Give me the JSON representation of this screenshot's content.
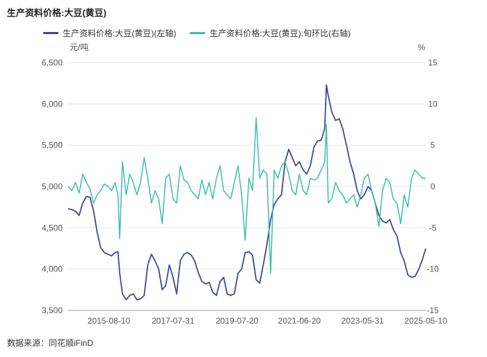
{
  "title": "生产资料价格:大豆(黄豆)",
  "source": "数据来源：同花顺iFinD",
  "legend": [
    {
      "label": "生产资料价格:大豆(黄豆)(左轴)",
      "color": "#3d4a8f"
    },
    {
      "label": "生产资料价格:大豆(黄豆):旬环比(右轴)",
      "color": "#3bbfa5"
    }
  ],
  "axes": {
    "left_unit": "元/吨",
    "right_unit": "%",
    "left_ticks": [
      "6,500",
      "6,000",
      "5,500",
      "5,000",
      "4,500",
      "4,000",
      "3,500"
    ],
    "right_ticks": [
      "15",
      "10",
      "5",
      "0",
      "-5",
      "-10",
      "-15"
    ],
    "x_ticks": [
      "2015-08-10",
      "2017-07-31",
      "2019-07-20",
      "2021-06-20",
      "2023-05-31",
      "2025-05-10"
    ]
  },
  "chart_data": {
    "type": "line",
    "title": "生产资料价格:大豆(黄豆)",
    "x_range": [
      "2014-05-10",
      "2025-05-10"
    ],
    "y_left_range": [
      3500,
      6500
    ],
    "y_right_range": [
      -15,
      15
    ],
    "series": [
      {
        "name": "生产资料价格:大豆(黄豆)(左轴)",
        "axis": "left",
        "color": "#3d4a8f",
        "points": [
          [
            "2014-05-10",
            4730
          ],
          [
            "2014-06-20",
            4720
          ],
          [
            "2014-08-01",
            4700
          ],
          [
            "2014-09-10",
            4650
          ],
          [
            "2014-10-20",
            4800
          ],
          [
            "2014-12-01",
            4880
          ],
          [
            "2015-01-10",
            4870
          ],
          [
            "2015-02-20",
            4700
          ],
          [
            "2015-03-31",
            4450
          ],
          [
            "2015-05-10",
            4260
          ],
          [
            "2015-06-20",
            4200
          ],
          [
            "2015-08-01",
            4180
          ],
          [
            "2015-09-10",
            4160
          ],
          [
            "2015-10-20",
            4200
          ],
          [
            "2015-11-20",
            4210
          ],
          [
            "2015-12-10",
            3950
          ],
          [
            "2016-01-10",
            3700
          ],
          [
            "2016-02-20",
            3630
          ],
          [
            "2016-03-31",
            3680
          ],
          [
            "2016-05-10",
            3700
          ],
          [
            "2016-06-20",
            3630
          ],
          [
            "2016-08-01",
            3640
          ],
          [
            "2016-09-10",
            3680
          ],
          [
            "2016-10-20",
            4050
          ],
          [
            "2016-12-01",
            4180
          ],
          [
            "2017-01-10",
            4100
          ],
          [
            "2017-02-20",
            4000
          ],
          [
            "2017-03-31",
            3750
          ],
          [
            "2017-05-10",
            3800
          ],
          [
            "2017-06-20",
            4050
          ],
          [
            "2017-07-31",
            3900
          ],
          [
            "2017-09-10",
            3700
          ],
          [
            "2017-10-20",
            4100
          ],
          [
            "2017-12-01",
            4180
          ],
          [
            "2018-01-10",
            4200
          ],
          [
            "2018-02-20",
            4170
          ],
          [
            "2018-03-31",
            4100
          ],
          [
            "2018-05-10",
            3960
          ],
          [
            "2018-06-20",
            3850
          ],
          [
            "2018-08-01",
            3820
          ],
          [
            "2018-09-10",
            3840
          ],
          [
            "2018-10-20",
            3720
          ],
          [
            "2018-12-01",
            3680
          ],
          [
            "2019-01-10",
            3850
          ],
          [
            "2019-02-20",
            3900
          ],
          [
            "2019-03-31",
            3700
          ],
          [
            "2019-05-10",
            3680
          ],
          [
            "2019-06-20",
            3700
          ],
          [
            "2019-07-31",
            3950
          ],
          [
            "2019-09-10",
            4000
          ],
          [
            "2019-10-20",
            4200
          ],
          [
            "2019-12-01",
            4210
          ],
          [
            "2020-01-10",
            4170
          ],
          [
            "2020-02-20",
            3870
          ],
          [
            "2020-03-31",
            3830
          ],
          [
            "2020-05-10",
            4050
          ],
          [
            "2020-06-20",
            4300
          ],
          [
            "2020-08-01",
            4600
          ],
          [
            "2020-09-10",
            4780
          ],
          [
            "2020-10-20",
            4850
          ],
          [
            "2020-12-01",
            4900
          ],
          [
            "2021-01-10",
            5300
          ],
          [
            "2021-02-20",
            5450
          ],
          [
            "2021-03-31",
            5350
          ],
          [
            "2021-05-10",
            5250
          ],
          [
            "2021-06-20",
            5300
          ],
          [
            "2021-08-01",
            5200
          ],
          [
            "2021-09-10",
            5150
          ],
          [
            "2021-10-20",
            5250
          ],
          [
            "2021-12-01",
            5480
          ],
          [
            "2022-01-10",
            5550
          ],
          [
            "2022-02-20",
            5560
          ],
          [
            "2022-03-31",
            5700
          ],
          [
            "2022-04-20",
            6230
          ],
          [
            "2022-05-10",
            6100
          ],
          [
            "2022-06-20",
            5900
          ],
          [
            "2022-08-01",
            5800
          ],
          [
            "2022-09-10",
            5820
          ],
          [
            "2022-10-20",
            5700
          ],
          [
            "2022-12-01",
            5500
          ],
          [
            "2023-01-10",
            5300
          ],
          [
            "2023-02-20",
            5150
          ],
          [
            "2023-03-31",
            4950
          ],
          [
            "2023-05-10",
            4850
          ],
          [
            "2023-06-20",
            4900
          ],
          [
            "2023-07-31",
            5000
          ],
          [
            "2023-09-10",
            4950
          ],
          [
            "2023-10-20",
            4800
          ],
          [
            "2023-12-01",
            4650
          ],
          [
            "2024-01-10",
            4580
          ],
          [
            "2024-02-20",
            4560
          ],
          [
            "2024-03-31",
            4600
          ],
          [
            "2024-05-10",
            4480
          ],
          [
            "2024-06-20",
            4400
          ],
          [
            "2024-08-01",
            4200
          ],
          [
            "2024-09-10",
            4100
          ],
          [
            "2024-10-20",
            3930
          ],
          [
            "2024-12-01",
            3900
          ],
          [
            "2025-01-10",
            3910
          ],
          [
            "2025-02-20",
            4000
          ],
          [
            "2025-03-31",
            4110
          ],
          [
            "2025-05-10",
            4250
          ]
        ]
      },
      {
        "name": "生产资料价格:大豆(黄豆):旬环比(右轴)",
        "axis": "right",
        "color": "#3bbfa5",
        "points": [
          [
            "2014-05-10",
            0.0
          ],
          [
            "2014-06-20",
            -0.5
          ],
          [
            "2014-08-01",
            0.5
          ],
          [
            "2014-09-10",
            -0.8
          ],
          [
            "2014-10-20",
            1.5
          ],
          [
            "2014-12-01",
            0.5
          ],
          [
            "2015-01-10",
            -0.3
          ],
          [
            "2015-02-20",
            -2.0
          ],
          [
            "2015-03-31",
            -1.0
          ],
          [
            "2015-05-10",
            -0.5
          ],
          [
            "2015-06-20",
            0.3
          ],
          [
            "2015-08-01",
            0.0
          ],
          [
            "2015-09-10",
            -0.5
          ],
          [
            "2015-10-20",
            0.5
          ],
          [
            "2015-11-20",
            -1.0
          ],
          [
            "2015-12-10",
            -6.3
          ],
          [
            "2016-01-10",
            3.0
          ],
          [
            "2016-02-20",
            -1.0
          ],
          [
            "2016-03-31",
            1.5
          ],
          [
            "2016-05-10",
            0.5
          ],
          [
            "2016-06-20",
            -1.0
          ],
          [
            "2016-08-01",
            0.5
          ],
          [
            "2016-09-10",
            3.5
          ],
          [
            "2016-10-20",
            1.0
          ],
          [
            "2016-12-01",
            -2.0
          ],
          [
            "2017-01-10",
            -0.5
          ],
          [
            "2017-02-20",
            -1.5
          ],
          [
            "2017-03-31",
            -4.5
          ],
          [
            "2017-05-10",
            1.0
          ],
          [
            "2017-06-20",
            1.5
          ],
          [
            "2017-07-31",
            -1.5
          ],
          [
            "2017-09-10",
            -2.0
          ],
          [
            "2017-10-20",
            2.5
          ],
          [
            "2017-12-01",
            0.8
          ],
          [
            "2018-01-10",
            0.5
          ],
          [
            "2018-02-20",
            -0.5
          ],
          [
            "2018-03-31",
            -1.0
          ],
          [
            "2018-05-10",
            -1.5
          ],
          [
            "2018-06-20",
            0.8
          ],
          [
            "2018-08-01",
            -1.0
          ],
          [
            "2018-09-10",
            0.5
          ],
          [
            "2018-10-20",
            -1.5
          ],
          [
            "2018-12-01",
            1.0
          ],
          [
            "2019-01-10",
            2.5
          ],
          [
            "2019-02-20",
            -0.5
          ],
          [
            "2019-03-31",
            -1.0
          ],
          [
            "2019-05-10",
            -1.5
          ],
          [
            "2019-06-20",
            0.5
          ],
          [
            "2019-07-31",
            2.5
          ],
          [
            "2019-09-10",
            -1.0
          ],
          [
            "2019-10-20",
            -6.5
          ],
          [
            "2019-12-01",
            1.0
          ],
          [
            "2020-01-10",
            -0.5
          ],
          [
            "2020-02-20",
            8.3
          ],
          [
            "2020-03-31",
            1.0
          ],
          [
            "2020-05-10",
            2.0
          ],
          [
            "2020-06-20",
            1.5
          ],
          [
            "2020-08-01",
            -10.5
          ],
          [
            "2020-09-10",
            2.0
          ],
          [
            "2020-10-20",
            1.0
          ],
          [
            "2020-12-01",
            2.5
          ],
          [
            "2021-01-10",
            3.0
          ],
          [
            "2021-02-20",
            1.5
          ],
          [
            "2021-03-31",
            -0.5
          ],
          [
            "2021-05-10",
            -1.0
          ],
          [
            "2021-06-20",
            1.5
          ],
          [
            "2021-08-01",
            -0.5
          ],
          [
            "2021-09-10",
            -1.0
          ],
          [
            "2021-10-20",
            1.0
          ],
          [
            "2021-12-01",
            0.8
          ],
          [
            "2022-01-10",
            1.0
          ],
          [
            "2022-02-20",
            2.0
          ],
          [
            "2022-03-31",
            3.0
          ],
          [
            "2022-04-20",
            7.5
          ],
          [
            "2022-05-10",
            -2.0
          ],
          [
            "2022-06-20",
            -1.5
          ],
          [
            "2022-08-01",
            0.5
          ],
          [
            "2022-09-10",
            -0.5
          ],
          [
            "2022-10-20",
            -1.0
          ],
          [
            "2022-12-01",
            -2.0
          ],
          [
            "2023-01-10",
            -1.5
          ],
          [
            "2023-02-20",
            -1.0
          ],
          [
            "2023-03-31",
            -2.5
          ],
          [
            "2023-05-10",
            -1.0
          ],
          [
            "2023-06-20",
            1.0
          ],
          [
            "2023-07-31",
            1.5
          ],
          [
            "2023-09-10",
            -0.5
          ],
          [
            "2023-10-20",
            -2.0
          ],
          [
            "2023-12-01",
            -4.8
          ],
          [
            "2024-01-10",
            -0.5
          ],
          [
            "2024-02-20",
            1.0
          ],
          [
            "2024-03-31",
            0.5
          ],
          [
            "2024-05-10",
            -1.5
          ],
          [
            "2024-06-20",
            -2.0
          ],
          [
            "2024-08-01",
            -4.5
          ],
          [
            "2024-09-10",
            -1.0
          ],
          [
            "2024-10-20",
            -2.5
          ],
          [
            "2024-12-01",
            1.0
          ],
          [
            "2025-01-10",
            2.0
          ],
          [
            "2025-02-20",
            1.5
          ],
          [
            "2025-03-31",
            1.0
          ],
          [
            "2025-05-10",
            1.0
          ]
        ]
      }
    ]
  }
}
